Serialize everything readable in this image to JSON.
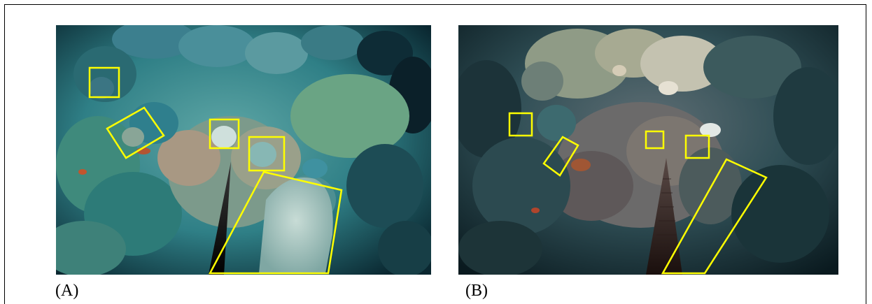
{
  "figure": {
    "panels": [
      {
        "label": "(A)",
        "annotation_count": 5
      },
      {
        "label": "(B)",
        "annotation_count": 5
      }
    ],
    "colors": {
      "annotation": "#ffff00",
      "frame": "#000000",
      "background": "#ffffff"
    }
  }
}
